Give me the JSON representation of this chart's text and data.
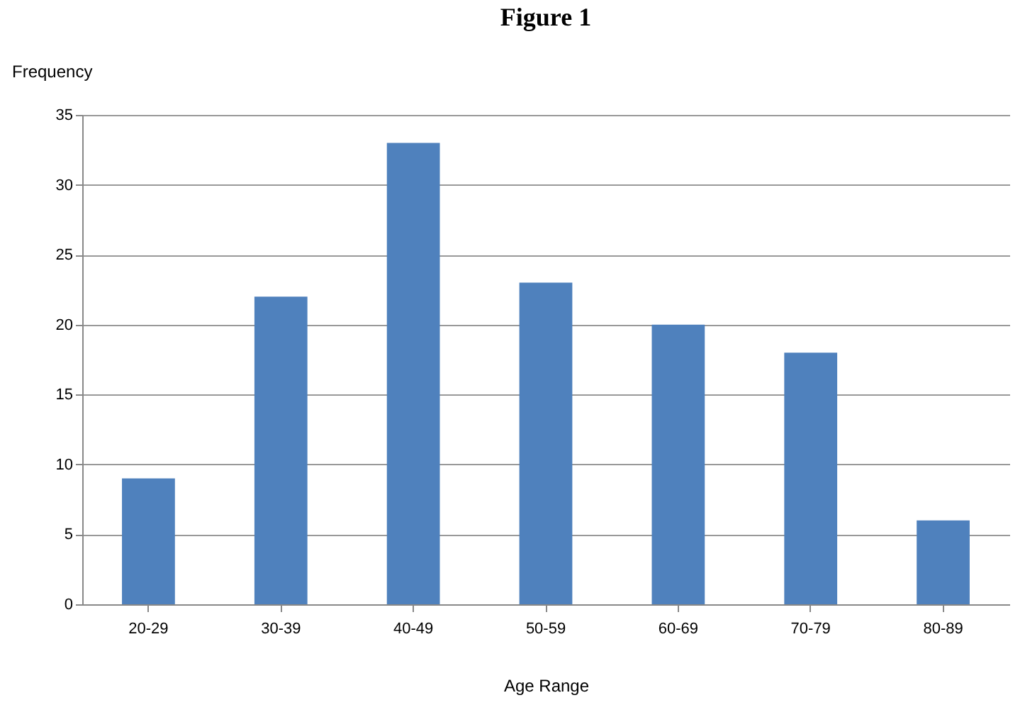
{
  "chart_data": {
    "type": "bar",
    "title": "Figure 1",
    "xlabel": "Age Range",
    "ylabel": "Frequency",
    "categories": [
      "20-29",
      "30-39",
      "40-49",
      "50-59",
      "60-69",
      "70-79",
      "80-89"
    ],
    "values": [
      9,
      22,
      33,
      23,
      20,
      18,
      6
    ],
    "color": "#4f81bd",
    "ylim": [
      0,
      35
    ],
    "yticks": [
      0,
      5,
      10,
      15,
      20,
      25,
      30,
      35
    ],
    "grid": "y"
  }
}
